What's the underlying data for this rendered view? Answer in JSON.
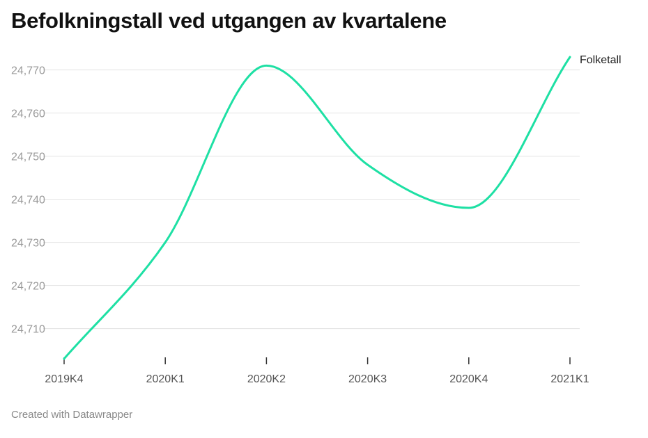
{
  "title": "Befolkningstall ved utgangen av kvartalene",
  "footer": "Created with Datawrapper",
  "colors": {
    "line": "#1ee0a4",
    "grid": "#e2e2e2",
    "axis": "#333333"
  },
  "chart_data": {
    "type": "line",
    "categories": [
      "2019K4",
      "2020K1",
      "2020K2",
      "2020K3",
      "2020K4",
      "2021K1"
    ],
    "series": [
      {
        "name": "Folketall",
        "values": [
          24703,
          24730,
          24771,
          24748,
          24738,
          24773
        ]
      }
    ],
    "yticks": [
      24710,
      24720,
      24730,
      24740,
      24750,
      24760,
      24770
    ],
    "ytick_labels": [
      "24,710",
      "24,720",
      "24,730",
      "24,740",
      "24,750",
      "24,760",
      "24,770"
    ],
    "ylim": [
      24703,
      24773
    ],
    "xlabel": "",
    "ylabel": "",
    "grid": true,
    "legend": "label at end of line"
  }
}
